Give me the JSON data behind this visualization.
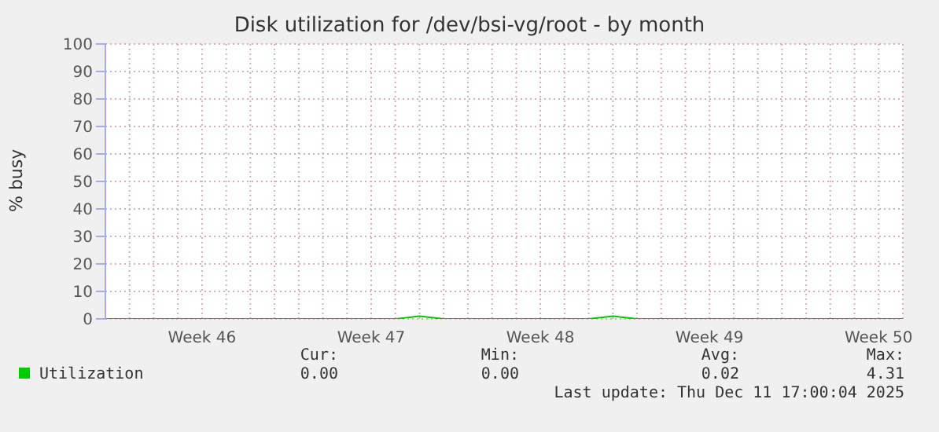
{
  "chart_data": {
    "type": "line",
    "title": "Disk utilization for /dev/bsi-vg/root - by month",
    "ylabel": "% busy",
    "categories": [
      null,
      null,
      null,
      null,
      "Week 46",
      null,
      null,
      null,
      null,
      null,
      null,
      "Week 47",
      null,
      null,
      null,
      null,
      null,
      null,
      "Week 48",
      null,
      null,
      null,
      null,
      null,
      null,
      "Week 49",
      null,
      null,
      null,
      null,
      null,
      null,
      "Week 50",
      null
    ],
    "series": [
      {
        "name": "Utilization",
        "color": "#00cc00",
        "values": [
          0,
          0,
          0,
          0,
          0,
          0,
          0,
          0,
          0,
          0,
          0,
          0,
          0,
          1,
          0,
          0,
          0,
          0,
          0,
          0,
          0,
          1,
          0,
          0,
          0,
          0,
          0,
          0,
          0,
          0,
          0,
          0,
          0,
          0
        ]
      }
    ],
    "ylim": [
      0,
      100
    ],
    "yticks": [
      0,
      10,
      20,
      30,
      40,
      50,
      60,
      70,
      80,
      90,
      100
    ],
    "grid": true,
    "legend": "bottom",
    "marker": "none",
    "line_style": "solid",
    "annotations": [
      "Cur:",
      "Min:",
      "Avg:",
      "Max:",
      "0.00",
      "0.00",
      "0.02",
      "4.31",
      "Last update: Thu Dec 11 17:00:04 2025"
    ]
  }
}
